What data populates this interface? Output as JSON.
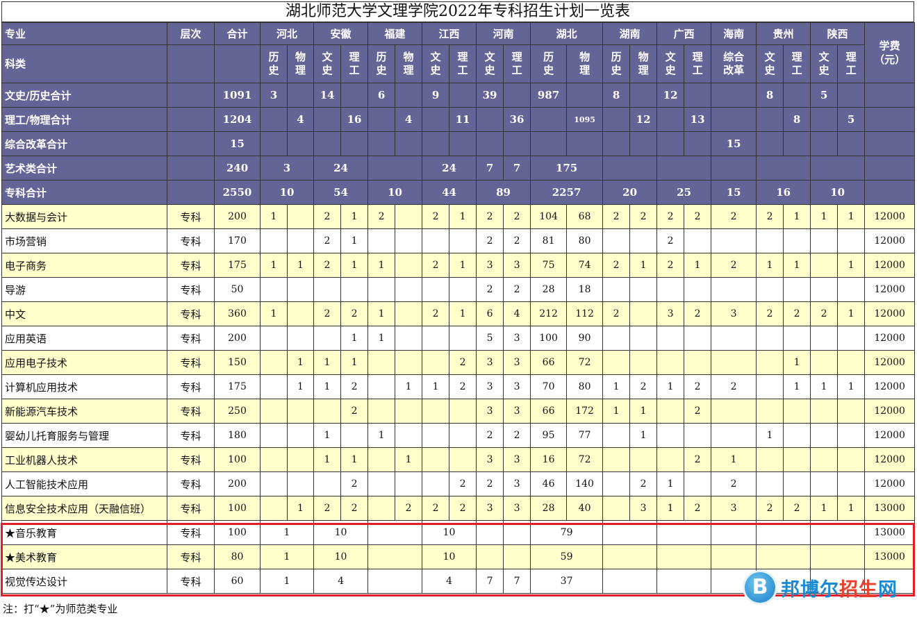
{
  "title": "湖北师范大学文理学院2022年专科招生计划一览表",
  "header": {
    "major": "专业",
    "level": "层次",
    "total": "合计",
    "category": "科类",
    "fee": "学费\n（元）",
    "provinces": [
      "河北",
      "安徽",
      "福建",
      "江西",
      "河南",
      "湖北",
      "湖南",
      "广西",
      "海南",
      "贵州",
      "陕西"
    ],
    "subjects": [
      "历\n史",
      "物\n理",
      "文\n史",
      "理\n工",
      "历\n史",
      "物\n理",
      "文\n史",
      "理\n工",
      "文\n史",
      "理\n工",
      "历\n史",
      "物\n理",
      "历\n史",
      "物\n理",
      "文\n史",
      "理\n工",
      "综合\n改革",
      "文\n史",
      "理\n工",
      "文\n史",
      "理\n工"
    ]
  },
  "summary": [
    {
      "label": "文史/历史合计",
      "total": "1091",
      "cells": [
        "3",
        "",
        "14",
        "",
        "6",
        "",
        "9",
        "",
        "39",
        "",
        "987",
        "",
        "8",
        "",
        "12",
        "",
        "",
        "8",
        "",
        "5",
        ""
      ]
    },
    {
      "label": "理工/物理合计",
      "total": "1204",
      "cells": [
        "",
        "4",
        "",
        "16",
        "",
        "4",
        "",
        "11",
        "",
        "36",
        "",
        "1095",
        "",
        "12",
        "",
        "13",
        "",
        "",
        "8",
        "",
        "5"
      ]
    },
    {
      "label": "综合改革合计",
      "total": "15",
      "cells": [
        "",
        "",
        "",
        "",
        "",
        "",
        "",
        "",
        "",
        "",
        "",
        "",
        "",
        "",
        "",
        "",
        "15",
        "",
        "",
        "",
        ""
      ]
    },
    {
      "label": "艺术类合计",
      "total": "240",
      "merged": [
        "3",
        "24",
        "",
        "24",
        "7",
        "7",
        "175",
        "",
        "",
        "",
        "",
        ""
      ]
    },
    {
      "label": "专科合计",
      "total": "2550",
      "prov": [
        "10",
        "54",
        "10",
        "44",
        "89",
        "2257",
        "20",
        "25",
        "15",
        "16",
        "10"
      ]
    }
  ],
  "majors": [
    {
      "name": "大数据与会计",
      "level": "专科",
      "total": "200",
      "cells": [
        "1",
        "",
        "2",
        "1",
        "2",
        "",
        "2",
        "1",
        "2",
        "2",
        "104",
        "68",
        "2",
        "2",
        "2",
        "2",
        "2",
        "2",
        "1",
        "1",
        "1"
      ],
      "fee": "12000"
    },
    {
      "name": "市场营销",
      "level": "专科",
      "total": "170",
      "cells": [
        "",
        "",
        "2",
        "1",
        "",
        "",
        "",
        "",
        "2",
        "2",
        "81",
        "80",
        "",
        "",
        "2",
        "",
        "",
        "",
        "",
        "",
        ""
      ],
      "fee": "12000"
    },
    {
      "name": "电子商务",
      "level": "专科",
      "total": "175",
      "cells": [
        "1",
        "1",
        "2",
        "1",
        "1",
        "",
        "2",
        "1",
        "3",
        "3",
        "75",
        "74",
        "2",
        "1",
        "2",
        "1",
        "2",
        "1",
        "1",
        "",
        "1"
      ],
      "fee": "12000"
    },
    {
      "name": "导游",
      "level": "专科",
      "total": "50",
      "cells": [
        "",
        "",
        "",
        "",
        "",
        "",
        "",
        "",
        "2",
        "2",
        "28",
        "18",
        "",
        "",
        "",
        "",
        "",
        "",
        "",
        "",
        ""
      ],
      "fee": "12000"
    },
    {
      "name": "中文",
      "level": "专科",
      "total": "360",
      "cells": [
        "1",
        "",
        "2",
        "2",
        "1",
        "",
        "2",
        "1",
        "6",
        "4",
        "212",
        "112",
        "2",
        "",
        "3",
        "2",
        "3",
        "2",
        "2",
        "2",
        "1"
      ],
      "fee": "12000"
    },
    {
      "name": "应用英语",
      "level": "专科",
      "total": "200",
      "cells": [
        "",
        "",
        "",
        "1",
        "1",
        "",
        "",
        "",
        "5",
        "3",
        "100",
        "90",
        "",
        "",
        "",
        "",
        "",
        "",
        "",
        "",
        ""
      ],
      "fee": "12000"
    },
    {
      "name": "应用电子技术",
      "level": "专科",
      "total": "150",
      "cells": [
        "",
        "1",
        "1",
        "1",
        "",
        "",
        "",
        "2",
        "3",
        "3",
        "66",
        "72",
        "",
        "",
        "",
        "",
        "",
        "",
        "1",
        "",
        ""
      ],
      "fee": "12000"
    },
    {
      "name": "计算机应用技术",
      "level": "专科",
      "total": "175",
      "cells": [
        "",
        "1",
        "1",
        "2",
        "",
        "1",
        "1",
        "2",
        "3",
        "3",
        "70",
        "80",
        "1",
        "2",
        "1",
        "2",
        "2",
        "",
        "1",
        "1",
        "1"
      ],
      "fee": "12000"
    },
    {
      "name": "新能源汽车技术",
      "level": "专科",
      "total": "250",
      "cells": [
        "",
        "",
        "",
        "2",
        "",
        "",
        "",
        "",
        "3",
        "3",
        "66",
        "172",
        "1",
        "1",
        "",
        "2",
        "",
        "",
        "",
        "",
        ""
      ],
      "fee": "12000"
    },
    {
      "name": "婴幼儿托育服务与管理",
      "level": "专科",
      "total": "180",
      "cells": [
        "",
        "",
        "1",
        "",
        "1",
        "",
        "",
        "",
        "2",
        "2",
        "95",
        "77",
        "",
        "1",
        "",
        "",
        "",
        "1",
        "",
        "",
        ""
      ],
      "fee": "12000"
    },
    {
      "name": "工业机器人技术",
      "level": "专科",
      "total": "100",
      "cells": [
        "",
        "",
        "1",
        "1",
        "",
        "1",
        "",
        "",
        "3",
        "3",
        "16",
        "72",
        "",
        "",
        "",
        "2",
        "1",
        "",
        "",
        "",
        ""
      ],
      "fee": "12000"
    },
    {
      "name": "人工智能技术应用",
      "level": "专科",
      "total": "200",
      "cells": [
        "",
        "",
        "",
        "2",
        "",
        "",
        "",
        "2",
        "2",
        "3",
        "46",
        "140",
        "",
        "2",
        "1",
        "",
        "2",
        "",
        "",
        "",
        ""
      ],
      "fee": "12000"
    },
    {
      "name": "信息安全技术应用（天融信班）",
      "level": "专科",
      "total": "100",
      "cells": [
        "",
        "1",
        "2",
        "2",
        "",
        "2",
        "2",
        "2",
        "3",
        "3",
        "28",
        "40",
        "",
        "3",
        "1",
        "2",
        "3",
        "2",
        "2",
        "1",
        "1"
      ],
      "fee": "13000"
    }
  ],
  "art_majors": [
    {
      "name": "★音乐教育",
      "level": "专科",
      "total": "100",
      "merged": [
        "1",
        "10",
        "",
        "10",
        "",
        "",
        "79",
        "",
        "",
        "",
        "",
        ""
      ],
      "fee": "13000"
    },
    {
      "name": "★美术教育",
      "level": "专科",
      "total": "80",
      "merged": [
        "1",
        "10",
        "",
        "10",
        "",
        "",
        "59",
        "",
        "",
        "",
        "",
        ""
      ],
      "fee": "13000"
    },
    {
      "name": "视觉传达设计",
      "level": "专科",
      "total": "60",
      "merged": [
        "1",
        "4",
        "",
        "4",
        "7",
        "7",
        "37",
        "",
        "",
        "",
        "",
        ""
      ],
      "fee": ""
    }
  ],
  "note": "注：打“★”为师范类专业",
  "watermark": {
    "logo": "B",
    "text_a": "邦博尔",
    "text_b": "招生",
    "text_c": "网"
  }
}
